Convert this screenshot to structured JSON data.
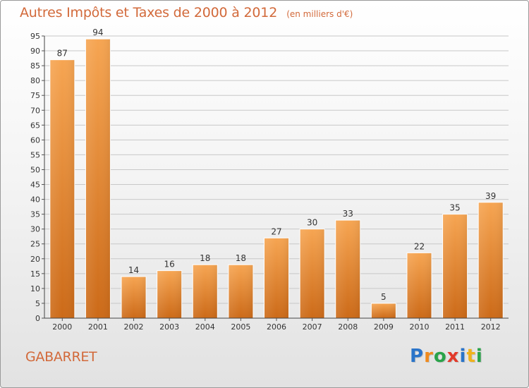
{
  "chart_data": {
    "type": "bar",
    "title": "Autres Impôts et Taxes de 2000 à 2012",
    "subtitle": "(en milliers d'€)",
    "categories": [
      "2000",
      "2001",
      "2002",
      "2003",
      "2004",
      "2005",
      "2006",
      "2007",
      "2008",
      "2009",
      "2010",
      "2011",
      "2012"
    ],
    "values": [
      87,
      94,
      14,
      16,
      18,
      18,
      27,
      30,
      33,
      5,
      22,
      35,
      39
    ],
    "ylim": [
      0,
      95
    ],
    "ytick_step": 5,
    "grid": true,
    "legend": "none",
    "bar_color_top": "#f6a552",
    "bar_color_bottom": "#cc6a18",
    "label": "GABARRET"
  },
  "logo": {
    "letters": [
      "P",
      "r",
      "o",
      "x",
      "i",
      "t",
      "i"
    ],
    "colors": [
      "#2a74c9",
      "#f08a1c",
      "#2aa34a",
      "#e23a2a",
      "#2a74c9",
      "#f0b21c",
      "#2aa34a"
    ]
  }
}
